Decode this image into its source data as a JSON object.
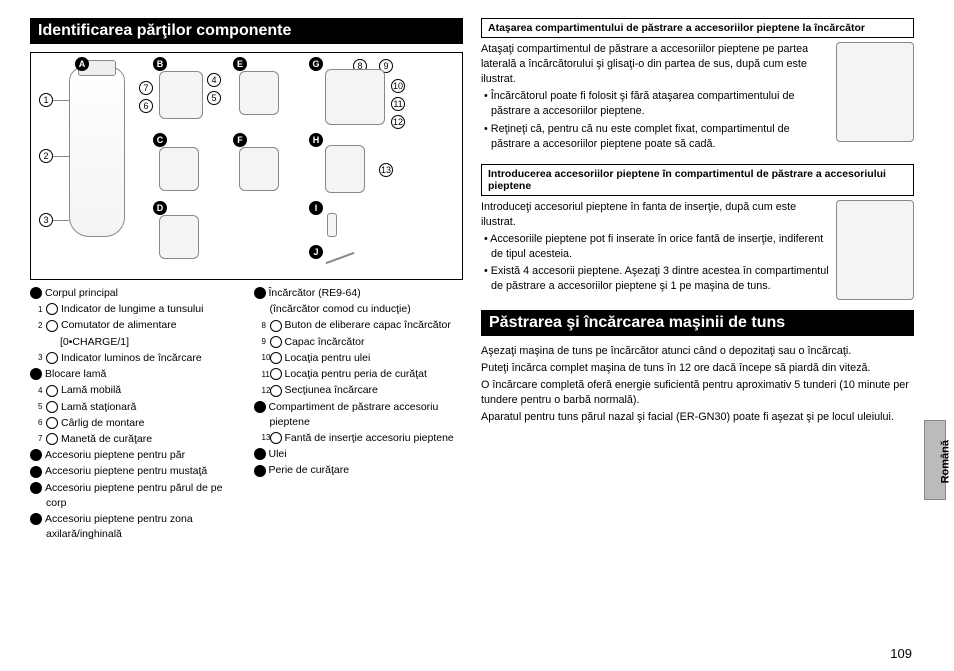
{
  "page_number": "109",
  "side_label": "Română",
  "left": {
    "title": "Identificarea părţilor componente",
    "badges": [
      "A",
      "B",
      "C",
      "D",
      "E",
      "F",
      "G",
      "H",
      "I",
      "J"
    ],
    "circles": [
      "1",
      "2",
      "3",
      "4",
      "5",
      "6",
      "7",
      "8",
      "9",
      "10",
      "11",
      "12",
      "13"
    ],
    "legend_left": [
      {
        "t": "b",
        "mark": "A",
        "text": "Corpul principal"
      },
      {
        "t": "c",
        "mark": "1",
        "text": "Indicator de lungime a tunsului",
        "sub": true
      },
      {
        "t": "c",
        "mark": "2",
        "text": "Comutator de alimentare",
        "sub": true
      },
      {
        "t": "plain",
        "text": "[0•CHARGE/1]",
        "sub": true,
        "extra_indent": true
      },
      {
        "t": "c",
        "mark": "3",
        "text": "Indicator luminos de încărcare",
        "sub": true
      },
      {
        "t": "b",
        "mark": "B",
        "text": "Blocare lamă"
      },
      {
        "t": "c",
        "mark": "4",
        "text": "Lamă mobilă",
        "sub": true
      },
      {
        "t": "c",
        "mark": "5",
        "text": "Lamă staţionară",
        "sub": true
      },
      {
        "t": "c",
        "mark": "6",
        "text": "Cârlig de montare",
        "sub": true
      },
      {
        "t": "c",
        "mark": "7",
        "text": "Manetă de curăţare",
        "sub": true
      },
      {
        "t": "b",
        "mark": "C",
        "text": "Accesoriu pieptene pentru păr"
      },
      {
        "t": "b",
        "mark": "D",
        "text": "Accesoriu pieptene pentru mustaţă"
      },
      {
        "t": "b",
        "mark": "E",
        "text": "Accesoriu pieptene pentru părul de pe corp"
      },
      {
        "t": "b",
        "mark": "F",
        "text": "Accesoriu pieptene pentru zona axilară/inghinală"
      }
    ],
    "legend_right": [
      {
        "t": "b",
        "mark": "G",
        "text": "Încărcător (RE9-64)"
      },
      {
        "t": "plain",
        "text": "(încărcător comod cu inducţie)",
        "sub": true
      },
      {
        "t": "c",
        "mark": "8",
        "text": "Buton de eliberare capac încărcător",
        "sub": true
      },
      {
        "t": "c",
        "mark": "9",
        "text": "Capac încărcător",
        "sub": true
      },
      {
        "t": "c",
        "mark": "10",
        "text": "Locaţia pentru ulei",
        "sub": true
      },
      {
        "t": "c",
        "mark": "11",
        "text": "Locaţia pentru peria de curăţat",
        "sub": true
      },
      {
        "t": "c",
        "mark": "12",
        "text": "Secţiunea încărcare",
        "sub": true
      },
      {
        "t": "b",
        "mark": "H",
        "text": "Compartiment de păstrare accesoriu pieptene"
      },
      {
        "t": "c",
        "mark": "13",
        "text": "Fantă de inserţie accesoriu pieptene",
        "sub": true
      },
      {
        "t": "b",
        "mark": "I",
        "text": "Ulei"
      },
      {
        "t": "b",
        "mark": "J",
        "text": "Perie de curăţare"
      }
    ]
  },
  "right": {
    "box1_head": "Ataşarea compartimentului de păstrare a accesoriilor pieptene la încărcător",
    "box1_body": [
      "Ataşaţi compartimentul de păstrare a accesoriilor pieptene pe partea laterală a încărcătorului şi glisaţi-o din partea de sus, după cum este ilustrat.",
      "• Încărcătorul poate fi folosit şi fără ataşarea compartimentului de păstrare a accesoriilor pieptene.",
      "• Reţineţi că, pentru că nu este complet fixat, compartimentul de păstrare a accesoriilor pieptene poate să cadă."
    ],
    "box2_head": "Introducerea accesoriilor pieptene în compartimentul de păstrare a accesoriului pieptene",
    "box2_body": [
      "Introduceţi accesoriul pieptene în fanta de inserţie, după cum este ilustrat.",
      "• Accesoriile pieptene pot fi inserate în orice fantă de inserţie, indiferent de tipul acesteia.",
      "• Există 4 accesorii pieptene. Aşezaţi 3 dintre acestea în compartimentul de păstrare a accesoriilor pieptene şi 1 pe maşina de tuns."
    ],
    "title2": "Păstrarea şi încărcarea maşinii de tuns",
    "body2": [
      "Aşezaţi maşina de tuns pe încărcător atunci când o depozitaţi sau o încărcaţi.",
      "Puteţi încărca complet maşina de tuns în 12 ore dacă începe să piardă din viteză.",
      "O încărcare completă oferă energie suficientă pentru aproximativ 5 tunderi (10 minute per tundere pentru o barbă normală).",
      "Aparatul pentru tuns părul nazal şi facial (ER-GN30) poate fi aşezat şi pe locul uleiului."
    ]
  },
  "colors": {
    "header_bg": "#000000",
    "header_fg": "#ffffff",
    "line": "#888888"
  }
}
